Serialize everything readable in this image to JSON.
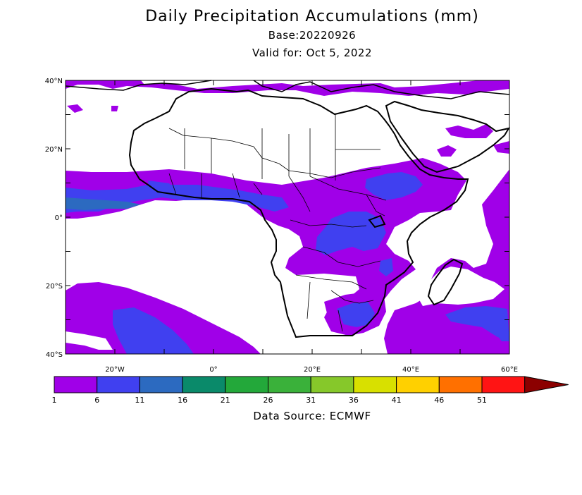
{
  "header": {
    "title": "Daily Precipitation Accumulations (mm)",
    "base": "Base:20220926",
    "valid": "Valid for: Oct 5, 2022"
  },
  "map": {
    "lat_ticks": [
      {
        "lat": 40,
        "label": "40°N"
      },
      {
        "lat": 20,
        "label": "20°N"
      },
      {
        "lat": 0,
        "label": "0°"
      },
      {
        "lat": -20,
        "label": "20°S"
      },
      {
        "lat": -40,
        "label": "40°S"
      }
    ],
    "lon_ticks": [
      {
        "lon": -20,
        "label": "20°W"
      },
      {
        "lon": 0,
        "label": "0°"
      },
      {
        "lon": 20,
        "label": "20°E"
      },
      {
        "lon": 40,
        "label": "40°E"
      },
      {
        "lon": 60,
        "label": "60°E"
      }
    ],
    "extent": {
      "lon_min": -30,
      "lon_max": 60,
      "lat_min": -40,
      "lat_max": 40
    }
  },
  "legend": {
    "colors": [
      "#a000e8",
      "#4040f0",
      "#2c6ac0",
      "#0a8a6a",
      "#23a83a",
      "#3ab13a",
      "#86c82a",
      "#d8e000",
      "#ffd000",
      "#ff7000",
      "#ff1414",
      "#8c0000"
    ],
    "labels": [
      "1",
      "6",
      "11",
      "16",
      "21",
      "26",
      "31",
      "36",
      "41",
      "46",
      "51"
    ]
  },
  "footer": {
    "source": "Data Source: ECMWF"
  }
}
